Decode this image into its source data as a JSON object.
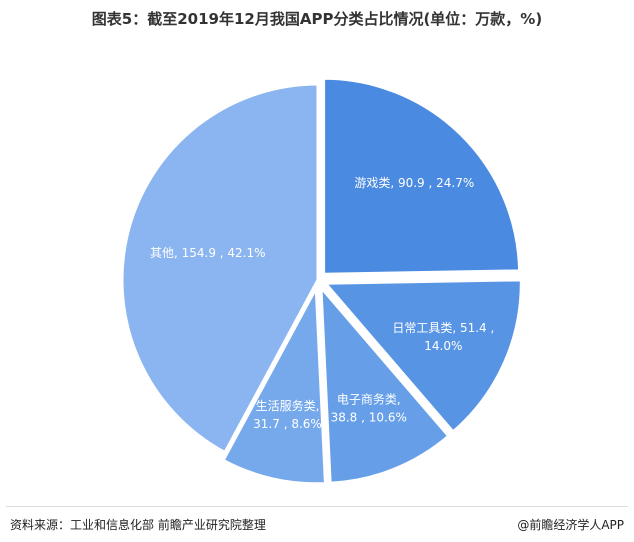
{
  "title": "图表5：截至2019年12月我国APP分类占比情况(单位：万款，%)",
  "chart_data": {
    "type": "pie",
    "title": "图表5：截至2019年12月我国APP分类占比情况(单位：万款，%)",
    "slices": [
      {
        "name": "游戏类",
        "value": 90.9,
        "percent": 24.7,
        "label_lines": [
          "游戏类, 90.9 , 24.7%"
        ],
        "color": "#4a8ae0"
      },
      {
        "name": "日常工具类",
        "value": 51.4,
        "percent": 14.0,
        "label_lines": [
          "日常工具类, 51.4 ,",
          "14.0%"
        ],
        "color": "#5894e4"
      },
      {
        "name": "电子商务类",
        "value": 38.8,
        "percent": 10.6,
        "label_lines": [
          "电子商务类,",
          "38.8 , 10.6%"
        ],
        "color": "#669fe8"
      },
      {
        "name": "生活服务类",
        "value": 31.7,
        "percent": 8.6,
        "label_lines": [
          "生活服务类,",
          "31.7 , 8.6%"
        ],
        "color": "#76a9ec"
      },
      {
        "name": "其他",
        "value": 154.9,
        "percent": 42.1,
        "label_lines": [
          "其他, 154.9 , 42.1%"
        ],
        "color": "#8bb5f0"
      }
    ]
  },
  "footer": {
    "source": "资料来源：工业和信息化部 前瞻产业研究院整理",
    "credit": "@前瞻经济学人APP"
  }
}
